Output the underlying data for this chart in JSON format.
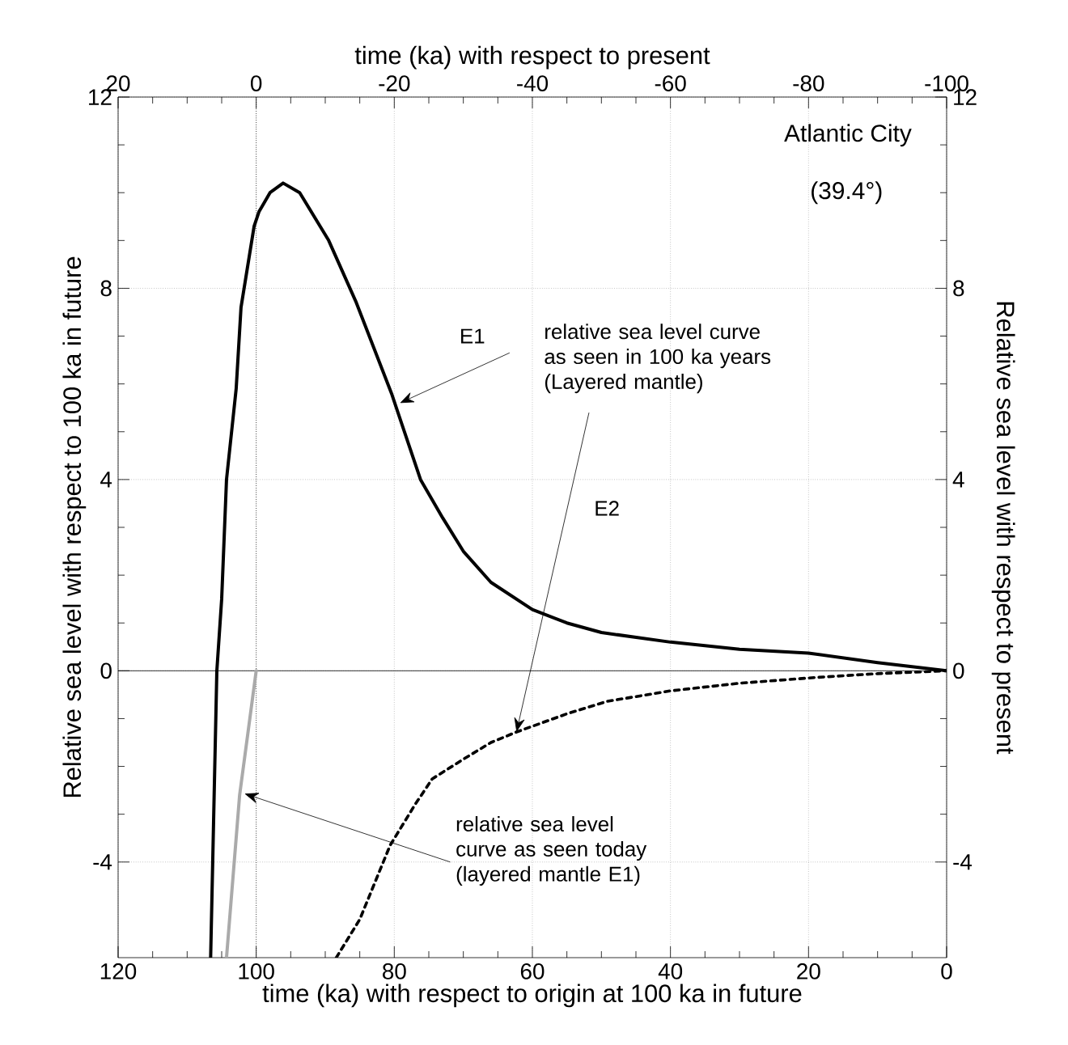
{
  "chart_data": {
    "type": "line",
    "xlabel": "time (ka) with respect to origin at 100 ka in future",
    "ylabel": "Relative sea level with respect to 100 ka in future",
    "x2label": "time (ka) with respect to present",
    "y2label": "Relative sea level with respect to present",
    "xlim": [
      120,
      0
    ],
    "xticks": [
      120,
      100,
      80,
      60,
      40,
      20,
      0
    ],
    "ylim": [
      -6,
      12
    ],
    "yticks": [
      -4,
      0,
      4,
      8,
      12
    ],
    "x2lim": [
      20,
      -100
    ],
    "x2ticks": [
      20,
      0,
      -20,
      -40,
      -60,
      -80,
      -100
    ],
    "y2lim": [
      -6,
      12
    ],
    "y2ticks": [
      -4,
      0,
      4,
      8,
      12
    ],
    "grid": true,
    "series": [
      {
        "color": "#000000",
        "line_style": "solid",
        "x": [
          106.6,
          105.7,
          105.0,
          104.3,
          102.9,
          102.2,
          100.3,
          99.6,
          98.0,
          96.1,
          93.7,
          89.5,
          85.5,
          80.4,
          76.2,
          73,
          70,
          66,
          60,
          55,
          50,
          40,
          30,
          20,
          10,
          0
        ],
        "values": [
          -6,
          0,
          1.5,
          4.0,
          5.9,
          7.6,
          9.3,
          9.6,
          10.0,
          10.2,
          10.0,
          9.0,
          7.7,
          5.8,
          4.0,
          3.2,
          2.5,
          1.85,
          1.28,
          1.0,
          0.8,
          0.6,
          0.45,
          0.37,
          0.17,
          0
        ]
      },
      {
        "color": "#000000",
        "line_style": "dashed",
        "x": [
          88.4,
          85,
          80.6,
          77,
          74.5,
          70,
          66,
          62.3,
          55,
          49.2,
          40,
          30,
          19,
          10,
          0
        ],
        "values": [
          -6,
          -5.2,
          -3.65,
          -2.8,
          -2.26,
          -1.85,
          -1.5,
          -1.28,
          -0.9,
          -0.64,
          -0.42,
          -0.26,
          -0.14,
          -0.06,
          0
        ]
      },
      {
        "color": "#aaaaaa",
        "line_style": "solid",
        "x": [
          104.3,
          102.4,
          101.2,
          100
        ],
        "values": [
          -6,
          -2.6,
          -1.3,
          0
        ]
      }
    ],
    "ref_lines": [
      {
        "axis": "x",
        "value": 100,
        "line_style": "dotted"
      },
      {
        "axis": "y",
        "value": 0,
        "line_style": "solid"
      }
    ],
    "annotations": [
      "Atlantic City",
      "(39.4°)",
      {
        "text": "relative sea level curve as seen in 100 ka years (Layered mantle)",
        "x": 62.3,
        "y": -1.28
      },
      {
        "text": "E1",
        "x": 79.2,
        "y": 5.6
      },
      "E2",
      {
        "text": "relative sea level curve as seen today (layered mantle E1)",
        "x": 101.7,
        "y": -2.57
      }
    ]
  }
}
